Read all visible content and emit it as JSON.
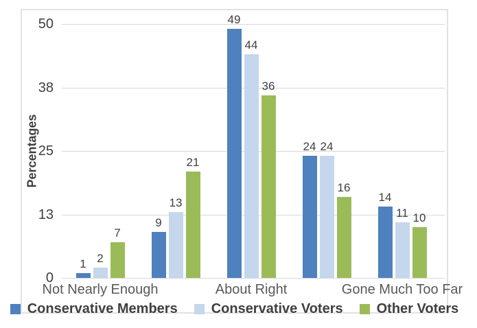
{
  "chart_data": {
    "type": "bar",
    "title": "",
    "xlabel": "",
    "ylabel": "Percentages",
    "ylim": [
      0,
      50
    ],
    "yticks": [
      {
        "value": 0,
        "label": "0"
      },
      {
        "value": 12.5,
        "label": "13"
      },
      {
        "value": 25,
        "label": "25"
      },
      {
        "value": 37.5,
        "label": "38"
      },
      {
        "value": 50,
        "label": "50"
      }
    ],
    "categories": [
      "Not Nearly Enough",
      "",
      "About Right",
      "",
      "Gone Much Too Far"
    ],
    "series": [
      {
        "name": "Conservative Members",
        "color": "#4E81BD",
        "values": [
          1,
          9,
          49,
          24,
          14
        ]
      },
      {
        "name": "Conservative Voters",
        "color": "#C5D7EC",
        "values": [
          2,
          13,
          44,
          24,
          11
        ]
      },
      {
        "name": "Other Voters",
        "color": "#9BBB59",
        "values": [
          7,
          21,
          36,
          16,
          10
        ]
      }
    ],
    "grid": true,
    "legend_position": "bottom",
    "data_labels": true
  }
}
